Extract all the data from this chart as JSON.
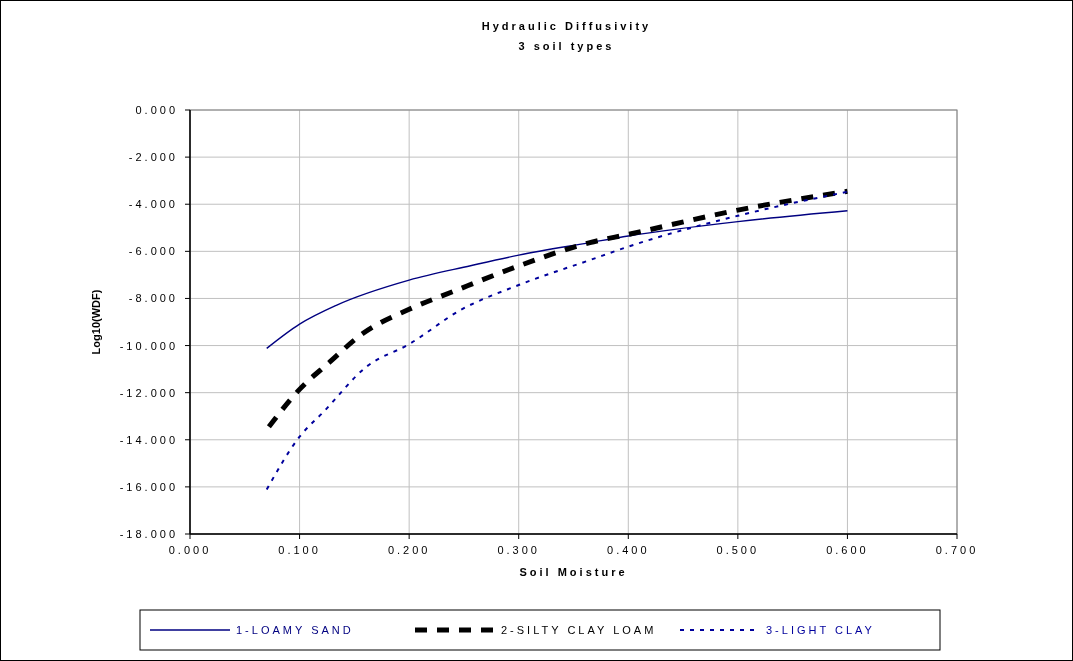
{
  "chart_data": {
    "type": "line",
    "title": "Hydraulic Diffusivity",
    "subtitle": "3 soil types",
    "xlabel": "Soil Moisture",
    "ylabel": "Log10(WDF)",
    "xlim": [
      0,
      0.7
    ],
    "xticks": [
      {
        "value": 0,
        "label": "0.000"
      },
      {
        "value": 0.1,
        "label": "0.100"
      },
      {
        "value": 0.2,
        "label": "0.200"
      },
      {
        "value": 0.3,
        "label": "0.300"
      },
      {
        "value": 0.4,
        "label": "0.400"
      },
      {
        "value": 0.5,
        "label": "0.500"
      },
      {
        "value": 0.6,
        "label": "0.600"
      },
      {
        "value": 0.7,
        "label": "0.700"
      }
    ],
    "ylim": [
      -18,
      0
    ],
    "yticks": [
      {
        "value": 0,
        "label": "0.000"
      },
      {
        "value": -2,
        "label": "-2.000"
      },
      {
        "value": -4,
        "label": "-4.000"
      },
      {
        "value": -6,
        "label": "-6.000"
      },
      {
        "value": -8,
        "label": "-8.000"
      },
      {
        "value": -10,
        "label": "-10.000"
      },
      {
        "value": -12,
        "label": "-12.000"
      },
      {
        "value": -14,
        "label": "-14.000"
      },
      {
        "value": -16,
        "label": "-16.000"
      },
      {
        "value": -18,
        "label": "-18.000"
      }
    ],
    "grid": true,
    "legend": "bottom",
    "series": [
      {
        "name": "1-LOAMY SAND",
        "color": "#000080",
        "line_style": "solid",
        "x": [
          0.07,
          0.1,
          0.134,
          0.2,
          0.256,
          0.3,
          0.365,
          0.4,
          0.5,
          0.6
        ],
        "values": [
          -10.12,
          -9.09,
          -8.28,
          -7.22,
          -6.61,
          -6.16,
          -5.63,
          -5.35,
          -4.74,
          -4.28
        ]
      },
      {
        "name": "2-SILTY CLAY LOAM",
        "color": "#000000",
        "line_style": "dashed",
        "x": [
          0.072,
          0.1,
          0.126,
          0.158,
          0.2,
          0.24,
          0.3,
          0.365,
          0.4,
          0.5,
          0.6
        ],
        "values": [
          -13.45,
          -11.86,
          -10.76,
          -9.48,
          -8.46,
          -7.71,
          -6.62,
          -5.63,
          -5.28,
          -4.25,
          -3.45
        ]
      },
      {
        "name": "3-LIGHT CLAY",
        "color": "#00009c",
        "line_style": "dotted",
        "x": [
          0.07,
          0.1,
          0.122,
          0.161,
          0.2,
          0.247,
          0.3,
          0.365,
          0.4,
          0.5,
          0.6
        ],
        "values": [
          -16.11,
          -13.87,
          -12.81,
          -10.9,
          -9.94,
          -8.49,
          -7.43,
          -6.37,
          -5.8,
          -4.49,
          -3.47
        ]
      }
    ]
  }
}
